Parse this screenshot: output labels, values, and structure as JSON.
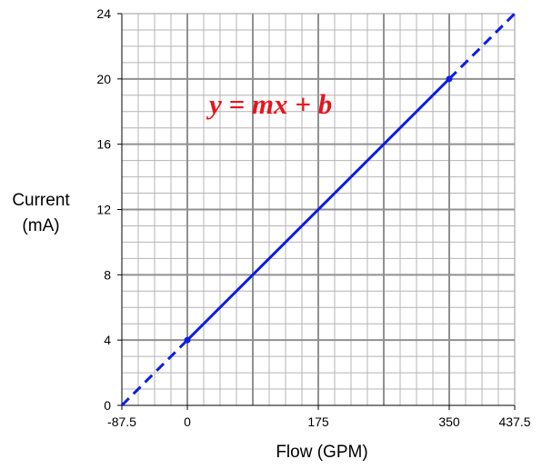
{
  "chart_data": {
    "type": "line",
    "xlabel": "Flow (GPM)",
    "ylabel_lines": [
      "Current",
      "(mA)"
    ],
    "annotation": "y = mx + b",
    "xlim": [
      -87.5,
      437.5
    ],
    "ylim": [
      0,
      24
    ],
    "x_ticks": [
      -87.5,
      0,
      175,
      350,
      437.5
    ],
    "x_tick_labels": [
      "-87.5",
      "0",
      "175",
      "350",
      "437.5"
    ],
    "y_ticks": [
      0,
      4,
      8,
      12,
      16,
      20,
      24
    ],
    "y_tick_labels": [
      "0",
      "4",
      "8",
      "12",
      "16",
      "20",
      "24"
    ],
    "grid": true,
    "series": [
      {
        "style": "dashed",
        "x": [
          -87.5,
          0
        ],
        "y": [
          0,
          4
        ]
      },
      {
        "style": "solid",
        "x": [
          0,
          350
        ],
        "y": [
          4,
          20
        ]
      },
      {
        "style": "dashed",
        "x": [
          350,
          437.5
        ],
        "y": [
          20,
          24
        ]
      }
    ],
    "points": [
      {
        "x": 0,
        "y": 4
      },
      {
        "x": 350,
        "y": 20
      }
    ],
    "line_color": "#0a1ee6",
    "annotation_color": "#e8141c"
  }
}
